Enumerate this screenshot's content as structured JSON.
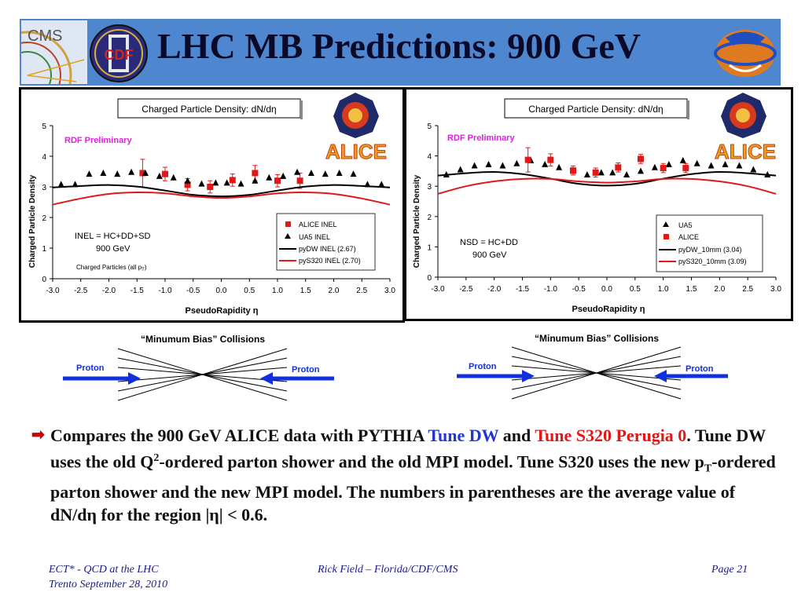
{
  "slide": {
    "title": "LHC MB Predictions: 900 GeV",
    "logos": {
      "cms": "CMS",
      "cdf": "CDF"
    }
  },
  "chart_data": [
    {
      "type": "scatter",
      "title": "Charged Particle Density: dN/dη",
      "xlabel": "PseudoRapidity η",
      "ylabel": "Charged Particle Density",
      "xlim": [
        -3.0,
        3.0
      ],
      "ylim": [
        0,
        5
      ],
      "xticks": [
        "-3.0",
        "-2.5",
        "-2.0",
        "-1.5",
        "-1.0",
        "-0.5",
        "0.0",
        "0.5",
        "1.0",
        "1.5",
        "2.0",
        "2.5",
        "3.0"
      ],
      "yticks": [
        "0",
        "1",
        "2",
        "3",
        "4",
        "5"
      ],
      "preliminary": "RDF Preliminary",
      "logo": "ALICE",
      "annotation_lines": [
        "INEL = HC+DD+SD",
        "900 GeV"
      ],
      "annotation_small": "Charged Particles (all p",
      "annotation_small_sub": "T",
      "annotation_small_end": ")",
      "legend_position": "bottom-right",
      "series": [
        {
          "name": "ALICE INEL",
          "kind": "points",
          "marker": "square",
          "color": "#e01818",
          "x": [
            -1.4,
            -1.0,
            -0.6,
            -0.2,
            0.2,
            0.6,
            1.0,
            1.4
          ],
          "y": [
            3.45,
            3.42,
            3.07,
            3.0,
            3.22,
            3.45,
            3.2,
            3.2
          ],
          "err": [
            0.45,
            0.22,
            0.2,
            0.2,
            0.2,
            0.25,
            0.2,
            0.25
          ]
        },
        {
          "name": "UA5 INEL",
          "kind": "points",
          "marker": "triangle",
          "color": "#000000",
          "x": [
            -2.85,
            -2.6,
            -2.35,
            -2.1,
            -1.85,
            -1.6,
            -1.35,
            -1.1,
            -0.85,
            -0.6,
            -0.35,
            -0.1,
            0.1,
            0.35,
            0.6,
            0.85,
            1.1,
            1.35,
            1.6,
            1.85,
            2.1,
            2.35,
            2.6,
            2.85
          ],
          "y": [
            3.08,
            3.08,
            3.42,
            3.45,
            3.42,
            3.48,
            3.45,
            3.35,
            3.3,
            3.2,
            3.1,
            3.13,
            3.13,
            3.1,
            3.2,
            3.3,
            3.35,
            3.48,
            3.45,
            3.42,
            3.45,
            3.42,
            3.08,
            3.08
          ]
        },
        {
          "name": "pyDW INEL (2.67)",
          "kind": "line",
          "color": "#000000",
          "x": [
            -3.0,
            -2.5,
            -2.0,
            -1.5,
            -1.0,
            -0.5,
            0.0,
            0.5,
            1.0,
            1.5,
            2.0,
            2.5,
            3.0
          ],
          "y": [
            2.98,
            3.03,
            3.06,
            3.01,
            2.88,
            2.74,
            2.69,
            2.74,
            2.88,
            3.01,
            3.06,
            3.03,
            2.98
          ]
        },
        {
          "name": "pyS320 INEL (2.70)",
          "kind": "line",
          "color": "#e01818",
          "x": [
            -3.0,
            -2.5,
            -2.0,
            -1.5,
            -1.0,
            -0.5,
            0.0,
            0.5,
            1.0,
            1.5,
            2.0,
            2.5,
            3.0
          ],
          "y": [
            2.42,
            2.62,
            2.77,
            2.82,
            2.79,
            2.69,
            2.64,
            2.69,
            2.79,
            2.82,
            2.77,
            2.62,
            2.42
          ]
        }
      ]
    },
    {
      "type": "scatter",
      "title": "Charged Particle Density: dN/dη",
      "xlabel": "PseudoRapidity η",
      "ylabel": "Charged Particle Density",
      "xlim": [
        -3.0,
        3.0
      ],
      "ylim": [
        0,
        5
      ],
      "xticks": [
        "-3.0",
        "-2.5",
        "-2.0",
        "-1.5",
        "-1.0",
        "-0.5",
        "0.0",
        "0.5",
        "1.0",
        "1.5",
        "2.0",
        "2.5",
        "3.0"
      ],
      "yticks": [
        "0",
        "1",
        "2",
        "3",
        "4",
        "5"
      ],
      "preliminary": "RDF Preliminary",
      "logo": "ALICE",
      "annotation_lines": [
        "NSD = HC+DD",
        "900 GeV"
      ],
      "legend_position": "bottom-right",
      "series": [
        {
          "name": "UA5",
          "kind": "points",
          "marker": "triangle",
          "color": "#000000",
          "x": [
            -2.85,
            -2.6,
            -2.35,
            -2.1,
            -1.85,
            -1.6,
            -1.35,
            -1.1,
            -0.85,
            -0.6,
            -0.35,
            -0.1,
            0.1,
            0.35,
            0.6,
            0.85,
            1.1,
            1.35,
            1.6,
            1.85,
            2.1,
            2.35,
            2.6,
            2.85
          ],
          "y": [
            3.38,
            3.55,
            3.68,
            3.72,
            3.68,
            3.75,
            3.85,
            3.72,
            3.62,
            3.5,
            3.38,
            3.45,
            3.45,
            3.38,
            3.5,
            3.62,
            3.72,
            3.85,
            3.75,
            3.68,
            3.72,
            3.68,
            3.55,
            3.38
          ]
        },
        {
          "name": "ALICE",
          "kind": "points",
          "marker": "square",
          "color": "#e01818",
          "x": [
            -1.4,
            -1.0,
            -0.6,
            -0.2,
            0.2,
            0.6,
            1.0,
            1.4
          ],
          "y": [
            3.87,
            3.87,
            3.52,
            3.45,
            3.62,
            3.9,
            3.6,
            3.6
          ],
          "err": [
            0.4,
            0.2,
            0.15,
            0.15,
            0.15,
            0.15,
            0.15,
            0.15
          ]
        },
        {
          "name": "pyDW_10mm (3.04)",
          "kind": "line",
          "color": "#000000",
          "x": [
            -3.0,
            -2.5,
            -2.0,
            -1.5,
            -1.0,
            -0.5,
            0.0,
            0.5,
            1.0,
            1.5,
            2.0,
            2.5,
            3.0
          ],
          "y": [
            3.35,
            3.43,
            3.47,
            3.4,
            3.25,
            3.08,
            3.02,
            3.08,
            3.25,
            3.4,
            3.47,
            3.43,
            3.35
          ]
        },
        {
          "name": "pyS320_10mm (3.09)",
          "kind": "line",
          "color": "#e01818",
          "x": [
            -3.0,
            -2.5,
            -2.0,
            -1.5,
            -1.0,
            -0.5,
            0.0,
            0.5,
            1.0,
            1.5,
            2.0,
            2.5,
            3.0
          ],
          "y": [
            2.75,
            3.0,
            3.16,
            3.24,
            3.24,
            3.16,
            3.12,
            3.16,
            3.24,
            3.24,
            3.16,
            3.0,
            2.75
          ]
        }
      ]
    }
  ],
  "diagrams": [
    {
      "caption": "“Minumum Bias” Collisions",
      "left_label": "Proton",
      "right_label": "Proton"
    },
    {
      "caption": "“Minumum Bias” Collisions",
      "left_label": "Proton",
      "right_label": "Proton"
    }
  ],
  "bullet": {
    "t1": "Compares the 900 GeV ALICE data with PYTHIA ",
    "t2": "Tune DW",
    "t3": " and ",
    "t4": "Tune S320 Perugia 0",
    "t5": ".  Tune DW uses the old Q",
    "t6": "2",
    "t7": "-ordered parton shower and the old MPI model.  Tune S320 uses the new p",
    "t8": "T",
    "t9": "-ordered parton shower and the new MPI model.  The numbers in parentheses are the average value of dN/dη for the region |η| < 0.6."
  },
  "footer": {
    "left1": "ECT* - QCD at the LHC",
    "left2": "Trento  September 28, 2010",
    "center": "Rick Field – Florida/CDF/CMS",
    "right": "Page 21"
  }
}
